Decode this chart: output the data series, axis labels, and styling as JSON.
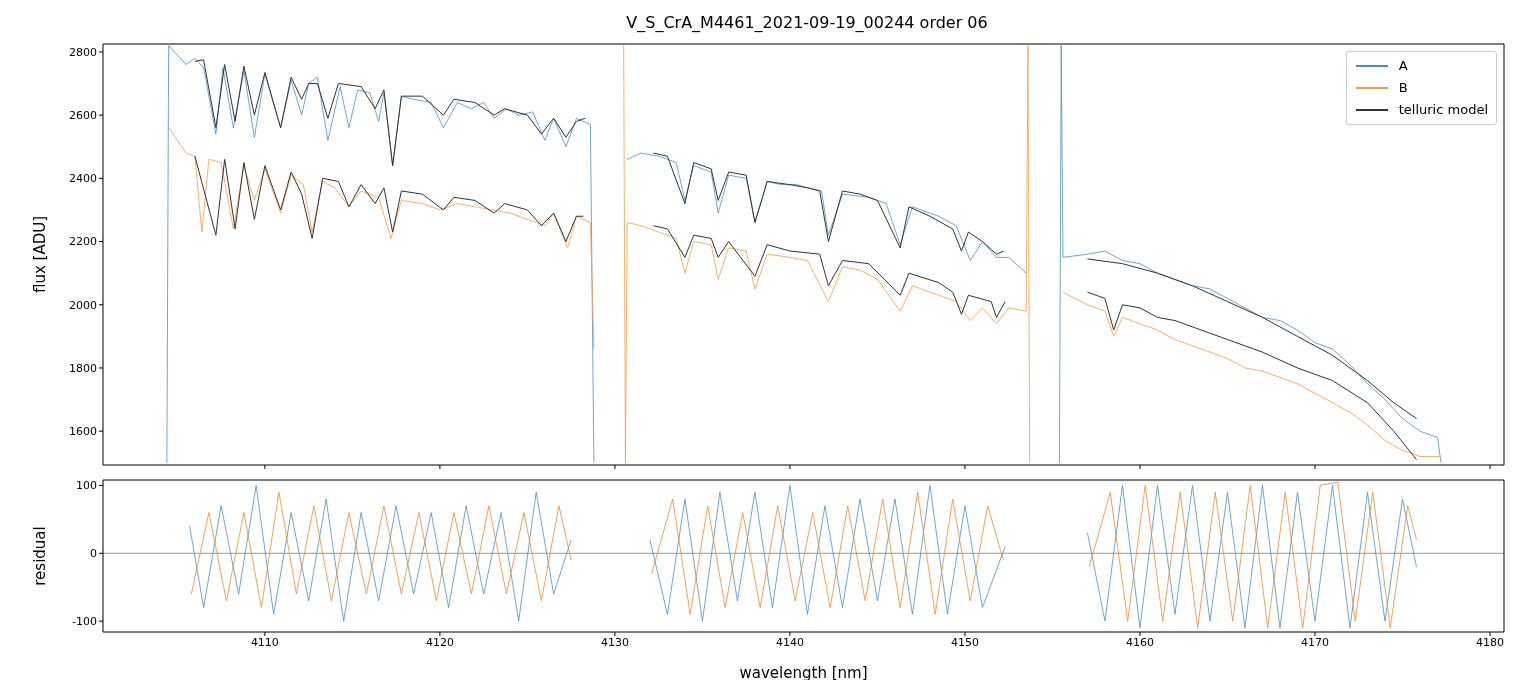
{
  "chart_data": [
    {
      "type": "line",
      "title": "V_S_CrA_M4461_2021-09-19_00244  order 06",
      "ylabel": "flux [ADU]",
      "xlim": [
        4100.75,
        4180.8
      ],
      "xticks": [
        4110,
        4120,
        4130,
        4140,
        4150,
        4160,
        4170,
        4180
      ],
      "ylim": [
        1493,
        2825
      ],
      "yticks": [
        1600,
        1800,
        2000,
        2200,
        2400,
        2600,
        2800
      ],
      "tick_labels": "y",
      "legend": "top right",
      "series": [
        {
          "name": "A",
          "color": "#4b8fc4",
          "x": [
            4104.4,
            4104.5,
            4105,
            4105.5,
            4106,
            4106.5,
            4107.2,
            4107.6,
            4108.2,
            4108.8,
            4109.4,
            4110,
            4110.9,
            4111.5,
            4112.1,
            4112.5,
            4113,
            4113.6,
            4114.3,
            4114.8,
            4115.3,
            4116,
            4116.5,
            4116.8,
            4117.3,
            4117.8,
            4118.5,
            4119.5,
            4120.2,
            4121,
            4121.8,
            4122.5,
            4123.1,
            4123.8,
            4124.5,
            4125.3,
            4126,
            4126.5,
            4127.2,
            4127.8,
            4128.6,
            4128.8,
            4129.5,
            4130.7,
            4131.5,
            4132.5,
            4133.5,
            4134,
            4134.5,
            4135.5,
            4135.9,
            4136.5,
            4137.5,
            4138,
            4138.7,
            4139.5,
            4140.4,
            4141,
            4141.8,
            4142.2,
            4143,
            4144.5,
            4145.5,
            4146.3,
            4147,
            4148.5,
            4149.5,
            4150.3,
            4151,
            4151.8,
            4152.5,
            4153.5,
            4154.5,
            4155.4,
            4155.5,
            4155.6,
            4157,
            4158,
            4159,
            4160,
            4161,
            4162,
            4163,
            4164,
            4165,
            4166,
            4167,
            4168,
            4169,
            4170,
            4171,
            4172,
            4173,
            4174,
            4175,
            4176,
            4177,
            4177.2
          ],
          "values": [
            1500,
            2820,
            2790,
            2760,
            2780,
            2750,
            2540,
            2750,
            2560,
            2740,
            2530,
            2730,
            2560,
            2710,
            2600,
            2700,
            2720,
            2520,
            2690,
            2560,
            2680,
            2670,
            2580,
            2670,
            2440,
            2660,
            2650,
            2640,
            2560,
            2640,
            2620,
            2640,
            2590,
            2620,
            2600,
            2610,
            2520,
            2590,
            2500,
            2590,
            2570,
            1500,
            null,
            2460,
            2480,
            2470,
            2450,
            2330,
            2440,
            2420,
            2290,
            2410,
            2400,
            2260,
            2390,
            2380,
            2380,
            2370,
            2360,
            2220,
            2350,
            2340,
            2320,
            2190,
            2310,
            2280,
            2250,
            2140,
            2200,
            2150,
            2150,
            2100,
            null,
            1500,
            2820,
            2150,
            2160,
            2170,
            2140,
            2130,
            2100,
            2080,
            2060,
            2050,
            2020,
            1990,
            1960,
            1950,
            1920,
            1880,
            1860,
            1810,
            1750,
            1700,
            1640,
            1600,
            1580,
            1500
          ]
        },
        {
          "name": "B",
          "color": "#fd9a40",
          "x": [
            4104.5,
            4105,
            4105.5,
            4106,
            4106.4,
            4106.8,
            4107.5,
            4108.2,
            4108.8,
            4109.4,
            4110,
            4110.9,
            4111.5,
            4112.2,
            4112.7,
            4113.3,
            4114,
            4114.8,
            4115.5,
            4116.5,
            4117.2,
            4117.8,
            4119,
            4120,
            4121,
            4122,
            4123,
            4124,
            4125,
            4126,
            4126.5,
            4127.3,
            4127.8,
            4128.6,
            4128.8,
            4129.5,
            4130.5,
            4130.6,
            4130.7,
            4131.5,
            4132.5,
            4133.5,
            4134,
            4134.5,
            4135.5,
            4135.9,
            4136.5,
            4137.5,
            4138,
            4138.7,
            4140,
            4141,
            4142.2,
            4143,
            4144,
            4145,
            4146.3,
            4147,
            4148.5,
            4149.5,
            4150.3,
            4151,
            4151.8,
            4152.5,
            4153.5,
            4153.6,
            4153.7,
            4154.5,
            4155.6,
            4157,
            4158,
            4158.5,
            4159,
            4160,
            4161,
            4162,
            4163,
            4164,
            4165,
            4166,
            4167,
            4168,
            4169,
            4170,
            4171,
            4172,
            4173,
            4174,
            4175,
            4176,
            4177.2
          ],
          "values": [
            2560,
            2520,
            2480,
            2470,
            2230,
            2460,
            2450,
            2240,
            2440,
            2330,
            2430,
            2290,
            2410,
            2380,
            2230,
            2390,
            2370,
            2310,
            2360,
            2340,
            2210,
            2330,
            2320,
            2300,
            2320,
            2310,
            2300,
            2290,
            2270,
            2250,
            2290,
            2180,
            2280,
            2260,
            1860,
            null,
            2820,
            1500,
            2260,
            2250,
            2230,
            2210,
            2100,
            2200,
            2190,
            2080,
            2180,
            2170,
            2050,
            2160,
            2150,
            2140,
            2010,
            2120,
            2110,
            2080,
            1980,
            2060,
            2030,
            2010,
            1950,
            1990,
            1940,
            1990,
            1980,
            2820,
            1500,
            null,
            2040,
            2000,
            1980,
            1900,
            1960,
            1940,
            1920,
            1890,
            1870,
            1850,
            1830,
            1800,
            1790,
            1770,
            1750,
            1720,
            1690,
            1660,
            1620,
            1570,
            1540,
            1520,
            1520
          ]
        },
        {
          "name": "telluric model",
          "color": "#333333",
          "x": [
            4106,
            4106.5,
            4107.2,
            4107.7,
            4108.3,
            4108.8,
            4109.4,
            4110,
            4110.9,
            4111.5,
            4112.1,
            4112.5,
            4113,
            4113.6,
            4114.2,
            4115.5,
            4116.3,
            4116.8,
            4117.3,
            4117.8,
            4119,
            4120.2,
            4120.8,
            4122,
            4123.1,
            4123.7,
            4125,
            4125.8,
            4126.5,
            4127.2,
            4127.8,
            4128.3,
            4130,
            4132.2,
            4133,
            4134,
            4134.5,
            4135.5,
            4135.9,
            4136.5,
            4137.5,
            4138,
            4138.7,
            4140,
            4141,
            4141.7,
            4142.2,
            4143,
            4144,
            4145,
            4146.3,
            4146.8,
            4148,
            4149.3,
            4149.8,
            4150.2,
            4151,
            4151.8,
            4152.2,
            4155,
            4157,
            4159,
            4161,
            4163,
            4165,
            4167,
            4169,
            4171,
            4173,
            4174.5,
            4175.8
          ],
          "values": [
            2770,
            2775,
            2560,
            2760,
            2580,
            2755,
            2600,
            2735,
            2560,
            2720,
            2650,
            2700,
            2700,
            2590,
            2700,
            2690,
            2620,
            2680,
            2440,
            2660,
            2660,
            2600,
            2650,
            2640,
            2600,
            2620,
            2600,
            2540,
            2590,
            2530,
            2580,
            2590,
            null,
            2480,
            2470,
            2320,
            2450,
            2430,
            2330,
            2420,
            2410,
            2260,
            2390,
            2380,
            2370,
            2360,
            2200,
            2360,
            2350,
            2330,
            2180,
            2310,
            2280,
            2240,
            2170,
            2230,
            2200,
            2160,
            2170,
            null,
            2145,
            2130,
            2100,
            2060,
            2010,
            1960,
            1900,
            1840,
            1760,
            1690,
            1640
          ]
        },
        {
          "color": "#333333",
          "x": [
            4106,
            4107.2,
            4107.7,
            4108.3,
            4108.8,
            4109.4,
            4110,
            4110.9,
            4111.5,
            4112.1,
            4112.7,
            4113.3,
            4114.2,
            4114.8,
            4115.5,
            4116.3,
            4116.8,
            4117.3,
            4117.8,
            4119,
            4120.2,
            4120.8,
            4122,
            4123.1,
            4123.7,
            4125,
            4125.8,
            4126.5,
            4127.2,
            4127.8,
            4128.2,
            4130,
            4132.2,
            4133,
            4134,
            4134.5,
            4135.5,
            4135.9,
            4136.5,
            4138,
            4138.7,
            4140,
            4141.7,
            4142.2,
            4143,
            4144.5,
            4146.3,
            4146.8,
            4148.5,
            4149.3,
            4149.8,
            4150.2,
            4151.5,
            4151.8,
            4152.3,
            4155,
            4157,
            4158,
            4158.5,
            4159,
            4160,
            4161,
            4162,
            4163,
            4165,
            4167,
            4169,
            4171,
            4173,
            4174.5,
            4175.8
          ],
          "values": [
            2470,
            2220,
            2460,
            2240,
            2450,
            2270,
            2440,
            2300,
            2420,
            2350,
            2210,
            2400,
            2390,
            2310,
            2380,
            2320,
            2370,
            2230,
            2360,
            2350,
            2300,
            2340,
            2330,
            2290,
            2320,
            2300,
            2250,
            2290,
            2200,
            2280,
            2280,
            null,
            2250,
            2240,
            2150,
            2220,
            2210,
            2150,
            2200,
            2090,
            2190,
            2170,
            2160,
            2060,
            2140,
            2130,
            2030,
            2100,
            2070,
            2040,
            1970,
            2030,
            2010,
            1960,
            2010,
            null,
            2040,
            2020,
            1920,
            2000,
            1990,
            1960,
            1950,
            1930,
            1890,
            1850,
            1800,
            1760,
            1690,
            1600,
            1510
          ]
        }
      ]
    },
    {
      "type": "line",
      "xlabel": "wavelength [nm]",
      "ylabel": "residual",
      "xlim": [
        4100.75,
        4180.8
      ],
      "xticks": [
        4110,
        4120,
        4130,
        4140,
        4150,
        4160,
        4170,
        4180
      ],
      "ylim": [
        -116,
        108
      ],
      "yticks": [
        -100,
        0,
        100
      ],
      "ref_lines": [
        {
          "axis": "y",
          "value": 0,
          "color": "#808080"
        }
      ],
      "series": [
        {
          "color": "#4b8fc4",
          "x": [
            4105.7,
            4106.5,
            4107.5,
            4108.5,
            4109.5,
            4110.5,
            4111.5,
            4112.5,
            4113.5,
            4114.5,
            4115.5,
            4116.5,
            4117.5,
            4118.5,
            4119.5,
            4120.5,
            4121.5,
            4122.5,
            4123.5,
            4124.5,
            4125.5,
            4126.5,
            4127.5,
            4130,
            4132,
            4133,
            4134,
            4135,
            4136,
            4137,
            4138,
            4139,
            4140,
            4141,
            4142,
            4143,
            4144,
            4145,
            4146,
            4147,
            4148,
            4149,
            4150,
            4151,
            4152.3,
            4155,
            4157,
            4158,
            4159,
            4160,
            4161,
            4162,
            4163,
            4164,
            4165,
            4166,
            4167,
            4168,
            4169,
            4170,
            4171,
            4172,
            4173,
            4174,
            4175,
            4175.8
          ],
          "values": [
            40,
            -80,
            70,
            -60,
            100,
            -90,
            60,
            -70,
            80,
            -100,
            60,
            -70,
            70,
            -60,
            60,
            -80,
            70,
            -60,
            60,
            -100,
            90,
            -60,
            20,
            null,
            20,
            -90,
            80,
            -100,
            90,
            -70,
            90,
            -80,
            100,
            -90,
            70,
            -80,
            80,
            -70,
            80,
            -90,
            100,
            -90,
            70,
            -80,
            10,
            null,
            30,
            -100,
            100,
            -110,
            100,
            -90,
            100,
            -100,
            90,
            -110,
            100,
            -110,
            90,
            -100,
            100,
            -110,
            90,
            -100,
            80,
            -20
          ]
        },
        {
          "color": "#ee8a32",
          "x": [
            4105.8,
            4106.8,
            4107.8,
            4108.8,
            4109.8,
            4110.8,
            4111.8,
            4112.8,
            4113.8,
            4114.8,
            4115.8,
            4116.8,
            4117.8,
            4118.8,
            4119.8,
            4120.8,
            4121.8,
            4122.8,
            4123.8,
            4124.8,
            4125.8,
            4126.8,
            4127.5,
            4130,
            4132.1,
            4133.3,
            4134.3,
            4135.3,
            4136.3,
            4137.3,
            4138.3,
            4139.3,
            4140.3,
            4141.3,
            4142.3,
            4143.3,
            4144.3,
            4145.3,
            4146.3,
            4147.3,
            4148.3,
            4149.3,
            4150.3,
            4151.3,
            4152.2,
            4155,
            4157.1,
            4158.3,
            4159.3,
            4160.3,
            4161.3,
            4162.3,
            4163.3,
            4164.3,
            4165.3,
            4166.3,
            4167.3,
            4168.3,
            4169.3,
            4170.3,
            4171.3,
            4172.3,
            4173.3,
            4174.3,
            4175.3,
            4175.8
          ],
          "values": [
            -60,
            60,
            -70,
            60,
            -80,
            90,
            -60,
            70,
            -70,
            60,
            -60,
            70,
            -60,
            60,
            -70,
            60,
            -60,
            70,
            -60,
            60,
            -70,
            70,
            -10,
            null,
            -30,
            80,
            -90,
            70,
            -80,
            60,
            -80,
            70,
            -70,
            60,
            -80,
            70,
            -70,
            80,
            -80,
            90,
            -90,
            80,
            -70,
            70,
            -10,
            null,
            -20,
            90,
            -100,
            100,
            -100,
            90,
            -110,
            90,
            -100,
            100,
            -110,
            90,
            -110,
            100,
            105,
            -100,
            90,
            -110,
            70,
            20
          ]
        }
      ]
    }
  ]
}
